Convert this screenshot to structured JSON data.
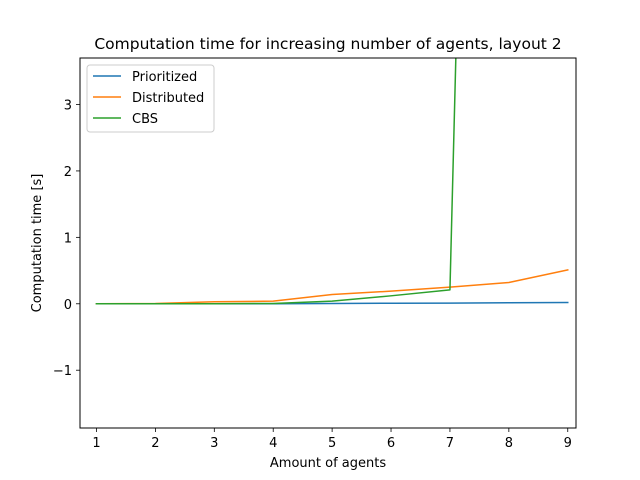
{
  "chart_data": {
    "type": "line",
    "title": "Computation time for increasing number of agents, layout 2",
    "xlabel": "Amount of agents",
    "ylabel": "Computation time [s]",
    "x": [
      1,
      2,
      3,
      4,
      5,
      6,
      7,
      8,
      9
    ],
    "xlim": [
      0.72,
      9.14
    ],
    "ylim": [
      -1.87,
      3.7
    ],
    "xticks": [
      "1",
      "2",
      "3",
      "4",
      "5",
      "6",
      "7",
      "8",
      "9"
    ],
    "yticks": [
      {
        "value": -1,
        "label": "−1"
      },
      {
        "value": 0,
        "label": "0"
      },
      {
        "value": 1,
        "label": "1"
      },
      {
        "value": 2,
        "label": "2"
      },
      {
        "value": 3,
        "label": "3"
      }
    ],
    "grid": false,
    "legend_position": "top-left",
    "series": [
      {
        "name": "Prioritized",
        "color": "#1f77b4",
        "x": [
          1,
          2,
          3,
          4,
          5,
          6,
          7,
          8,
          9
        ],
        "y": [
          0.0,
          0.0,
          0.0,
          0.0,
          0.005,
          0.008,
          0.01,
          0.015,
          0.02
        ]
      },
      {
        "name": "Distributed",
        "color": "#ff7f0e",
        "x": [
          1,
          2,
          3,
          4,
          5,
          6,
          7,
          8,
          9
        ],
        "y": [
          0.0,
          0.005,
          0.03,
          0.04,
          0.14,
          0.19,
          0.25,
          0.32,
          0.51
        ]
      },
      {
        "name": "CBS",
        "color": "#2ca02c",
        "x": [
          1,
          2,
          3,
          4,
          5,
          6,
          7,
          7.1
        ],
        "y": [
          0.0,
          0.0,
          0.0,
          0.005,
          0.04,
          0.12,
          0.21,
          3.7
        ]
      }
    ]
  }
}
